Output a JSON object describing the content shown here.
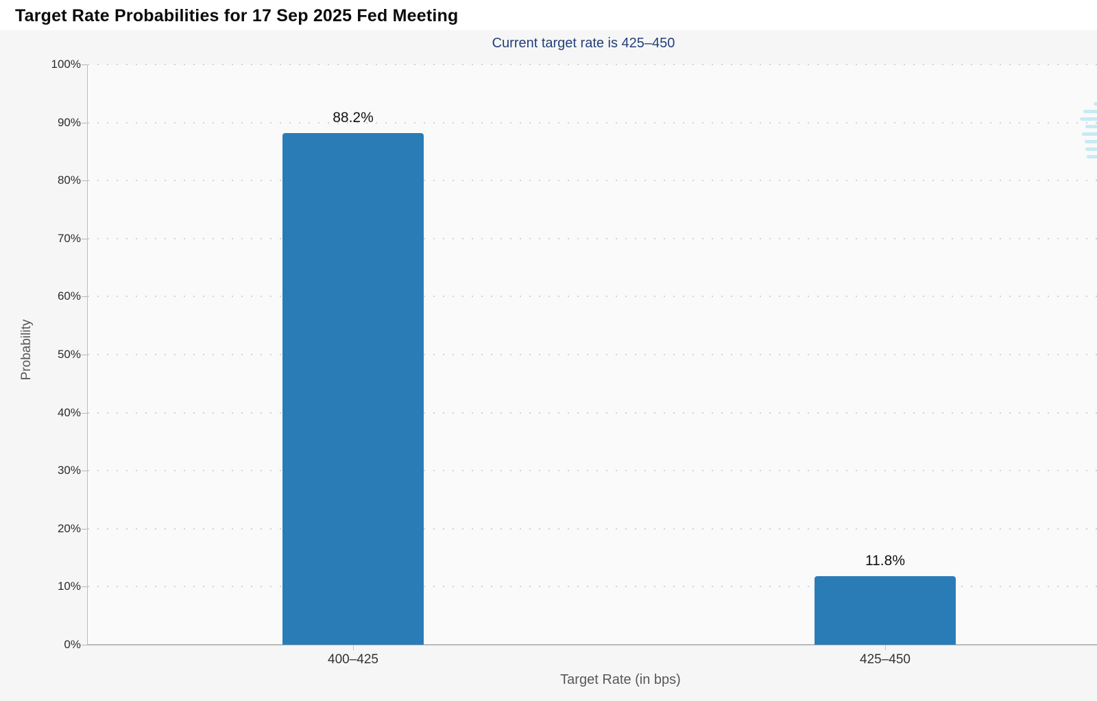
{
  "header": {
    "title": "Target Rate Probabilities for 17 Sep 2025 Fed Meeting"
  },
  "chart_data": {
    "type": "bar",
    "title": "Target Rate Probabilities for 17 Sep 2025 Fed Meeting",
    "subtitle": "Current target rate is 425–450",
    "categories": [
      "400–425",
      "425–450"
    ],
    "values": [
      88.2,
      11.8
    ],
    "value_labels": [
      "88.2%",
      "11.8%"
    ],
    "xlabel": "Target Rate (in bps)",
    "ylabel": "Probability",
    "ylim": [
      0,
      100
    ],
    "y_tick_labels": [
      "0%",
      "10%",
      "20%",
      "30%",
      "40%",
      "50%",
      "60%",
      "70%",
      "80%",
      "90%",
      "100%"
    ],
    "grid": "horizontal-dotted",
    "legend": "none",
    "bar_color": "#2a7cb7"
  },
  "colors": {
    "bar": "#2a7cb7",
    "subtitle_text": "#233f78",
    "watermark": "#c7eaf5",
    "page_background": "#f6f6f7",
    "plot_background": "#fafafa"
  },
  "watermark": {
    "name": "cme-globe-logo-fragment"
  }
}
